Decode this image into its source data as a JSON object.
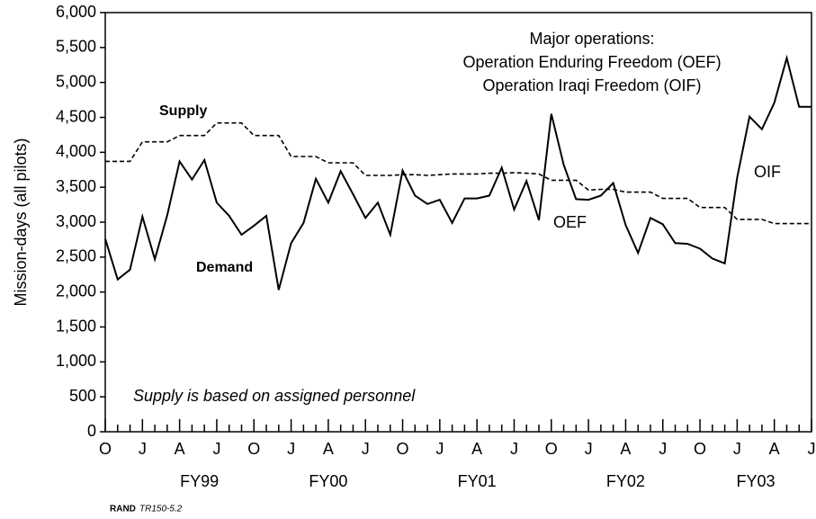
{
  "chart_data": {
    "type": "line",
    "y_label": "Mission-days (all pilots)",
    "categories": [
      "O",
      null,
      null,
      "J",
      null,
      null,
      "A",
      null,
      null,
      "J",
      null,
      null,
      "O",
      null,
      null,
      "J",
      null,
      null,
      "A",
      null,
      null,
      "J",
      null,
      null,
      "O",
      null,
      null,
      "J",
      null,
      null,
      "A",
      null,
      null,
      "J",
      null,
      null,
      "O",
      null,
      null,
      "J",
      null,
      null,
      "A",
      null,
      null,
      "J",
      null,
      null,
      "O",
      null,
      null,
      "J",
      null,
      null,
      "A",
      null,
      null,
      "J"
    ],
    "fiscal_years": [
      "FY99",
      "FY00",
      "FY01",
      "FY02",
      "FY03"
    ],
    "series": [
      {
        "name": "Supply",
        "color": "#000000",
        "dash": true,
        "values": [
          3870,
          3870,
          3870,
          4150,
          4150,
          4150,
          4240,
          4240,
          4240,
          4420,
          4420,
          4420,
          4240,
          4240,
          4240,
          3940,
          3940,
          3940,
          3850,
          3850,
          3850,
          3670,
          3670,
          3670,
          3680,
          3680,
          3670,
          3680,
          3690,
          3690,
          3690,
          3700,
          3700,
          3710,
          3700,
          3690,
          3600,
          3600,
          3600,
          3460,
          3470,
          3470,
          3430,
          3430,
          3430,
          3340,
          3340,
          3340,
          3210,
          3210,
          3210,
          3040,
          3040,
          3040,
          2980,
          2980,
          2980,
          2980
        ]
      },
      {
        "name": "Demand",
        "color": "#000000",
        "dash": false,
        "values": [
          2760,
          2180,
          2320,
          3080,
          2470,
          3100,
          3870,
          3610,
          3890,
          3280,
          3090,
          2820,
          2950,
          3090,
          2030,
          2700,
          2990,
          3620,
          3280,
          3730,
          3400,
          3060,
          3280,
          2820,
          3740,
          3380,
          3260,
          3320,
          2990,
          3340,
          3340,
          3380,
          3780,
          3180,
          3590,
          3030,
          4550,
          3820,
          3330,
          3320,
          3380,
          3560,
          2960,
          2560,
          3060,
          2970,
          2700,
          2690,
          2620,
          2480,
          2410,
          3640,
          4510,
          4330,
          4710,
          5350,
          4650,
          4650
        ]
      }
    ],
    "annotations": [
      "OEF",
      "OIF"
    ],
    "operations_title": "Major operations:",
    "operations": [
      "Operation Enduring Freedom (OEF)",
      "Operation Iraqi Freedom (OIF)"
    ],
    "note": "Supply is based on assigned personnel",
    "ylim": [
      0,
      6000
    ],
    "yticks": [
      0,
      500,
      {
        "value": 1000,
        "label": "1,000"
      },
      {
        "value": 1500,
        "label": "1,500"
      },
      {
        "value": 2000,
        "label": "2,000"
      },
      {
        "value": 2500,
        "label": "2,500"
      },
      {
        "value": 3000,
        "label": "3,000"
      },
      {
        "value": 3500,
        "label": "3,500"
      },
      {
        "value": 4000,
        "label": "4,000"
      },
      {
        "value": 4500,
        "label": "4,500"
      },
      {
        "value": 5000,
        "label": "5,000"
      },
      {
        "value": 5500,
        "label": "5,500"
      },
      {
        "value": 6000,
        "label": "6,000"
      }
    ]
  },
  "footer": {
    "org": "RAND",
    "id": "TR150-5.2"
  }
}
